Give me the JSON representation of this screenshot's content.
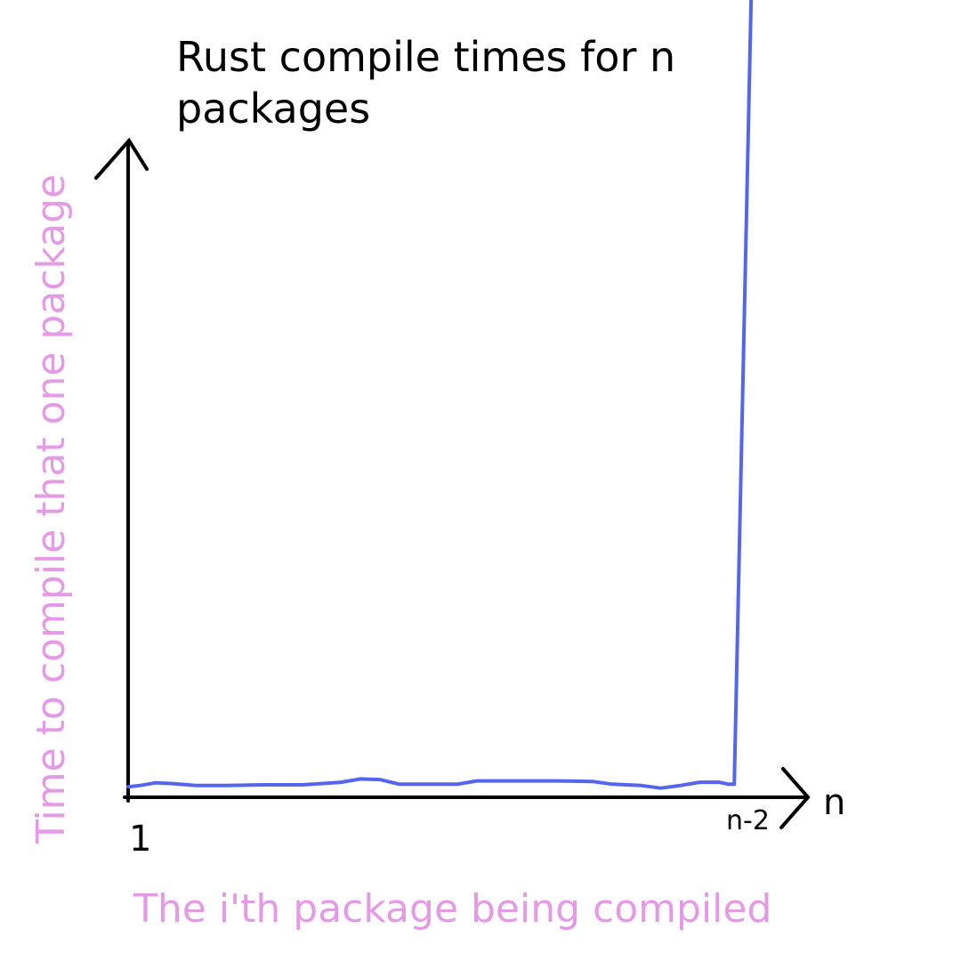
{
  "chart_data": {
    "type": "line",
    "title_lines": [
      "Rust compile times for n",
      "packages"
    ],
    "xlabel": "The i'th package being compiled",
    "ylabel": "Time to compile that one package",
    "x_ticks": {
      "start": "1",
      "second_last": "n-2",
      "end": "n"
    },
    "series": [
      {
        "values": [
          {
            "x": 1,
            "y": 1.6
          },
          {
            "x": 1.6,
            "y": 1.8
          },
          {
            "x": 2.4,
            "y": 2.2
          },
          {
            "x": 3.2,
            "y": 2.1
          },
          {
            "x": 4.5,
            "y": 1.8
          },
          {
            "x": 6.0,
            "y": 1.8
          },
          {
            "x": 8.0,
            "y": 1.9
          },
          {
            "x": 10.0,
            "y": 1.9
          },
          {
            "x": 12.0,
            "y": 2.3
          },
          {
            "x": 13.0,
            "y": 2.8
          },
          {
            "x": 14.0,
            "y": 2.7
          },
          {
            "x": 15.0,
            "y": 2.0
          },
          {
            "x": 18.0,
            "y": 2.0
          },
          {
            "x": 19.0,
            "y": 2.5
          },
          {
            "x": 23.0,
            "y": 2.5
          },
          {
            "x": 25.0,
            "y": 2.4
          },
          {
            "x": 26.0,
            "y": 2.0
          },
          {
            "x": 27.5,
            "y": 1.8
          },
          {
            "x": 28.5,
            "y": 1.4
          },
          {
            "x": 29.5,
            "y": 1.8
          },
          {
            "x": 30.5,
            "y": 2.3
          },
          {
            "x": 31.5,
            "y": 2.3
          },
          {
            "x": 32.0,
            "y": 2.0
          },
          {
            "x": 32.3,
            "y": 2.0
          },
          {
            "x": 33.3,
            "y": 140
          }
        ]
      }
    ],
    "xlim": [
      1,
      35
    ],
    "ylim": [
      0,
      100
    ],
    "grid": false,
    "line_color": "#5566ee",
    "label_color": "#e59ae5",
    "axis_color": "#000000"
  }
}
